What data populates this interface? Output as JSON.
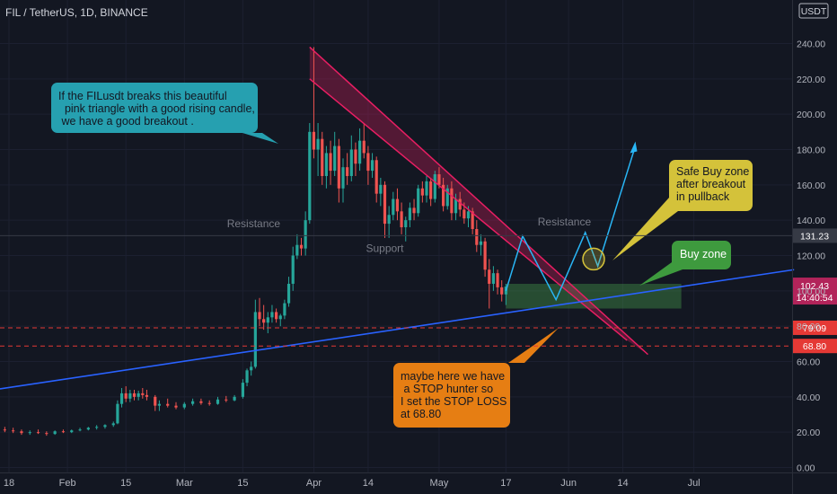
{
  "header": {
    "symbol": "FIL / TetherUS, 1D, BINANCE",
    "currency": "USDT"
  },
  "chart_data": {
    "type": "candlestick",
    "y_axis": {
      "ticks": [
        0,
        20,
        40,
        60,
        80,
        100,
        120,
        140,
        160,
        180,
        200,
        220,
        240
      ],
      "tick_labels": [
        "0.00",
        "20.00",
        "40.00",
        "60.00",
        "80.00",
        "100.00",
        "120.00",
        "140.00",
        "160.00",
        "180.00",
        "200.00",
        "220.00",
        "240.00"
      ],
      "ylim": [
        0,
        260
      ]
    },
    "x_axis": {
      "ticks": [
        "2021-01-18",
        "2021-02-01",
        "2021-02-15",
        "2021-03-01",
        "2021-03-15",
        "2021-04-01",
        "2021-04-14",
        "2021-05-01",
        "2021-05-17",
        "2021-06-01",
        "2021-06-14",
        "2021-07-01"
      ],
      "tick_labels": [
        "18",
        "Feb",
        "15",
        "Mar",
        "15",
        "Apr",
        "14",
        "May",
        "17",
        "Jun",
        "14",
        "Jul"
      ]
    },
    "price_levels": [
      {
        "label": "131.23",
        "value": 131.23,
        "color": "#363a45",
        "style": "solid"
      },
      {
        "label": "102.43",
        "sublabel": "14:40:54",
        "value": 102.43,
        "color": "#b2245a",
        "style": "current"
      },
      {
        "label": "79.09",
        "value": 79.09,
        "color": "#e53935",
        "style": "dashed"
      },
      {
        "label": "68.80",
        "value": 68.8,
        "color": "#e53935",
        "style": "dashed"
      }
    ],
    "annotations": {
      "resistance_1": "Resistance",
      "support": "Support",
      "resistance_2": "Resistance"
    },
    "colors": {
      "up": "#26a69a",
      "down": "#ef5350",
      "triangle": "#e91e63",
      "trend": "#2962ff",
      "projection": "#29b6f6"
    },
    "candles": [
      {
        "t": "2021-01-17",
        "o": 21.5,
        "h": 23,
        "l": 20,
        "c": 21
      },
      {
        "t": "2021-01-19",
        "o": 21,
        "h": 22.5,
        "l": 19.5,
        "c": 20.5
      },
      {
        "t": "2021-01-21",
        "o": 20.5,
        "h": 21.5,
        "l": 18.5,
        "c": 19.5
      },
      {
        "t": "2021-01-23",
        "o": 19.5,
        "h": 21,
        "l": 18.5,
        "c": 20
      },
      {
        "t": "2021-01-25",
        "o": 20,
        "h": 21.5,
        "l": 19,
        "c": 19.5
      },
      {
        "t": "2021-01-27",
        "o": 19.5,
        "h": 20.5,
        "l": 18,
        "c": 19
      },
      {
        "t": "2021-01-29",
        "o": 19,
        "h": 21,
        "l": 18.5,
        "c": 20.5
      },
      {
        "t": "2021-01-31",
        "o": 20.5,
        "h": 21.5,
        "l": 19.5,
        "c": 20
      },
      {
        "t": "2021-02-02",
        "o": 20,
        "h": 21.5,
        "l": 19.5,
        "c": 21
      },
      {
        "t": "2021-02-04",
        "o": 21,
        "h": 22.5,
        "l": 20.5,
        "c": 21.5
      },
      {
        "t": "2021-02-06",
        "o": 21.5,
        "h": 23,
        "l": 21,
        "c": 22.5
      },
      {
        "t": "2021-02-08",
        "o": 22.5,
        "h": 24,
        "l": 21.5,
        "c": 23
      },
      {
        "t": "2021-02-10",
        "o": 23,
        "h": 24.5,
        "l": 22,
        "c": 24
      },
      {
        "t": "2021-02-12",
        "o": 24,
        "h": 26,
        "l": 23,
        "c": 25
      },
      {
        "t": "2021-02-13",
        "o": 25,
        "h": 38,
        "l": 24.5,
        "c": 36
      },
      {
        "t": "2021-02-14",
        "o": 36,
        "h": 45,
        "l": 34,
        "c": 42
      },
      {
        "t": "2021-02-15",
        "o": 42,
        "h": 46,
        "l": 37,
        "c": 39
      },
      {
        "t": "2021-02-16",
        "o": 39,
        "h": 44,
        "l": 37,
        "c": 42
      },
      {
        "t": "2021-02-17",
        "o": 42,
        "h": 44,
        "l": 38,
        "c": 40
      },
      {
        "t": "2021-02-18",
        "o": 40,
        "h": 43.5,
        "l": 38,
        "c": 42
      },
      {
        "t": "2021-02-19",
        "o": 42,
        "h": 45,
        "l": 39,
        "c": 41
      },
      {
        "t": "2021-02-20",
        "o": 41,
        "h": 44,
        "l": 38,
        "c": 40
      },
      {
        "t": "2021-02-22",
        "o": 40,
        "h": 41,
        "l": 32,
        "c": 35
      },
      {
        "t": "2021-02-23",
        "o": 35,
        "h": 38,
        "l": 32,
        "c": 36
      },
      {
        "t": "2021-02-25",
        "o": 36,
        "h": 39,
        "l": 34,
        "c": 35
      },
      {
        "t": "2021-02-27",
        "o": 35,
        "h": 37,
        "l": 33,
        "c": 34
      },
      {
        "t": "2021-03-01",
        "o": 34,
        "h": 37,
        "l": 33,
        "c": 36
      },
      {
        "t": "2021-03-03",
        "o": 36,
        "h": 39,
        "l": 35,
        "c": 37.5
      },
      {
        "t": "2021-03-05",
        "o": 37.5,
        "h": 39,
        "l": 35.5,
        "c": 36.5
      },
      {
        "t": "2021-03-07",
        "o": 36.5,
        "h": 38,
        "l": 35,
        "c": 36
      },
      {
        "t": "2021-03-09",
        "o": 36,
        "h": 40,
        "l": 35.5,
        "c": 38.5
      },
      {
        "t": "2021-03-11",
        "o": 38.5,
        "h": 40.5,
        "l": 37,
        "c": 38
      },
      {
        "t": "2021-03-13",
        "o": 38,
        "h": 41,
        "l": 37.5,
        "c": 40
      },
      {
        "t": "2021-03-15",
        "o": 40,
        "h": 50,
        "l": 39,
        "c": 48
      },
      {
        "t": "2021-03-16",
        "o": 48,
        "h": 56,
        "l": 46,
        "c": 55
      },
      {
        "t": "2021-03-17",
        "o": 55,
        "h": 60,
        "l": 52,
        "c": 57
      },
      {
        "t": "2021-03-18",
        "o": 57,
        "h": 95,
        "l": 56,
        "c": 88
      },
      {
        "t": "2021-03-19",
        "o": 88,
        "h": 96,
        "l": 80,
        "c": 84
      },
      {
        "t": "2021-03-20",
        "o": 84,
        "h": 92,
        "l": 78,
        "c": 82
      },
      {
        "t": "2021-03-21",
        "o": 82,
        "h": 88,
        "l": 76,
        "c": 85
      },
      {
        "t": "2021-03-22",
        "o": 85,
        "h": 92,
        "l": 82,
        "c": 88
      },
      {
        "t": "2021-03-23",
        "o": 88,
        "h": 90,
        "l": 82,
        "c": 84
      },
      {
        "t": "2021-03-24",
        "o": 84,
        "h": 87,
        "l": 80,
        "c": 86
      },
      {
        "t": "2021-03-25",
        "o": 86,
        "h": 95,
        "l": 84,
        "c": 93
      },
      {
        "t": "2021-03-26",
        "o": 93,
        "h": 108,
        "l": 91,
        "c": 104
      },
      {
        "t": "2021-03-27",
        "o": 104,
        "h": 125,
        "l": 100,
        "c": 120
      },
      {
        "t": "2021-03-28",
        "o": 120,
        "h": 132,
        "l": 118,
        "c": 126
      },
      {
        "t": "2021-03-29",
        "o": 126,
        "h": 130,
        "l": 120,
        "c": 124
      },
      {
        "t": "2021-03-30",
        "o": 124,
        "h": 145,
        "l": 120,
        "c": 140
      },
      {
        "t": "2021-03-31",
        "o": 140,
        "h": 195,
        "l": 138,
        "c": 190
      },
      {
        "t": "2021-04-01",
        "o": 190,
        "h": 238,
        "l": 175,
        "c": 180
      },
      {
        "t": "2021-04-02",
        "o": 180,
        "h": 195,
        "l": 165,
        "c": 186
      },
      {
        "t": "2021-04-03",
        "o": 186,
        "h": 190,
        "l": 160,
        "c": 165
      },
      {
        "t": "2021-04-04",
        "o": 165,
        "h": 182,
        "l": 158,
        "c": 178
      },
      {
        "t": "2021-04-05",
        "o": 178,
        "h": 185,
        "l": 160,
        "c": 168
      },
      {
        "t": "2021-04-06",
        "o": 168,
        "h": 190,
        "l": 165,
        "c": 182
      },
      {
        "t": "2021-04-07",
        "o": 182,
        "h": 186,
        "l": 150,
        "c": 158
      },
      {
        "t": "2021-04-08",
        "o": 158,
        "h": 175,
        "l": 150,
        "c": 170
      },
      {
        "t": "2021-04-09",
        "o": 170,
        "h": 178,
        "l": 160,
        "c": 165
      },
      {
        "t": "2021-04-10",
        "o": 165,
        "h": 188,
        "l": 162,
        "c": 180
      },
      {
        "t": "2021-04-11",
        "o": 180,
        "h": 184,
        "l": 165,
        "c": 172
      },
      {
        "t": "2021-04-12",
        "o": 172,
        "h": 192,
        "l": 168,
        "c": 185
      },
      {
        "t": "2021-04-13",
        "o": 185,
        "h": 195,
        "l": 175,
        "c": 178
      },
      {
        "t": "2021-04-14",
        "o": 178,
        "h": 182,
        "l": 160,
        "c": 168
      },
      {
        "t": "2021-04-15",
        "o": 168,
        "h": 178,
        "l": 164,
        "c": 174
      },
      {
        "t": "2021-04-16",
        "o": 174,
        "h": 176,
        "l": 150,
        "c": 155
      },
      {
        "t": "2021-04-17",
        "o": 155,
        "h": 164,
        "l": 148,
        "c": 160
      },
      {
        "t": "2021-04-18",
        "o": 160,
        "h": 162,
        "l": 130,
        "c": 138
      },
      {
        "t": "2021-04-19",
        "o": 138,
        "h": 148,
        "l": 130,
        "c": 143
      },
      {
        "t": "2021-04-20",
        "o": 143,
        "h": 156,
        "l": 140,
        "c": 152
      },
      {
        "t": "2021-04-21",
        "o": 152,
        "h": 158,
        "l": 140,
        "c": 145
      },
      {
        "t": "2021-04-22",
        "o": 145,
        "h": 150,
        "l": 132,
        "c": 136
      },
      {
        "t": "2021-04-23",
        "o": 136,
        "h": 142,
        "l": 128,
        "c": 140
      },
      {
        "t": "2021-04-24",
        "o": 140,
        "h": 150,
        "l": 136,
        "c": 147
      },
      {
        "t": "2021-04-25",
        "o": 147,
        "h": 152,
        "l": 140,
        "c": 144
      },
      {
        "t": "2021-04-26",
        "o": 144,
        "h": 160,
        "l": 142,
        "c": 158
      },
      {
        "t": "2021-04-27",
        "o": 158,
        "h": 162,
        "l": 150,
        "c": 154
      },
      {
        "t": "2021-04-28",
        "o": 154,
        "h": 165,
        "l": 150,
        "c": 162
      },
      {
        "t": "2021-04-29",
        "o": 162,
        "h": 164,
        "l": 148,
        "c": 152
      },
      {
        "t": "2021-04-30",
        "o": 152,
        "h": 168,
        "l": 150,
        "c": 166
      },
      {
        "t": "2021-05-01",
        "o": 166,
        "h": 170,
        "l": 158,
        "c": 160
      },
      {
        "t": "2021-05-02",
        "o": 160,
        "h": 164,
        "l": 145,
        "c": 148
      },
      {
        "t": "2021-05-03",
        "o": 148,
        "h": 160,
        "l": 146,
        "c": 158
      },
      {
        "t": "2021-05-04",
        "o": 158,
        "h": 162,
        "l": 140,
        "c": 144
      },
      {
        "t": "2021-05-05",
        "o": 144,
        "h": 155,
        "l": 140,
        "c": 152
      },
      {
        "t": "2021-05-06",
        "o": 152,
        "h": 156,
        "l": 142,
        "c": 146
      },
      {
        "t": "2021-05-07",
        "o": 146,
        "h": 150,
        "l": 138,
        "c": 141
      },
      {
        "t": "2021-05-08",
        "o": 141,
        "h": 148,
        "l": 136,
        "c": 145
      },
      {
        "t": "2021-05-09",
        "o": 145,
        "h": 147,
        "l": 132,
        "c": 135
      },
      {
        "t": "2021-05-10",
        "o": 135,
        "h": 140,
        "l": 122,
        "c": 126
      },
      {
        "t": "2021-05-11",
        "o": 126,
        "h": 132,
        "l": 120,
        "c": 128
      },
      {
        "t": "2021-05-12",
        "o": 128,
        "h": 130,
        "l": 108,
        "c": 112
      },
      {
        "t": "2021-05-13",
        "o": 112,
        "h": 118,
        "l": 90,
        "c": 104
      },
      {
        "t": "2021-05-14",
        "o": 104,
        "h": 114,
        "l": 100,
        "c": 110
      },
      {
        "t": "2021-05-15",
        "o": 110,
        "h": 112,
        "l": 98,
        "c": 102
      },
      {
        "t": "2021-05-16",
        "o": 102,
        "h": 106,
        "l": 94,
        "c": 98
      },
      {
        "t": "2021-05-17",
        "o": 98,
        "h": 104,
        "l": 92,
        "c": 102.43
      }
    ]
  },
  "callouts": {
    "breakout": "If the FILusdt breaks this beautiful\n  pink triangle with a good rising candle,\n we have a good breakout .",
    "safe_buy": "Safe Buy zone\nafter breakout\nin pullback",
    "buy_zone": "Buy zone",
    "stop_loss": "maybe here we have\n a STOP hunter so\nI set the STOP LOSS\nat 68.80"
  }
}
